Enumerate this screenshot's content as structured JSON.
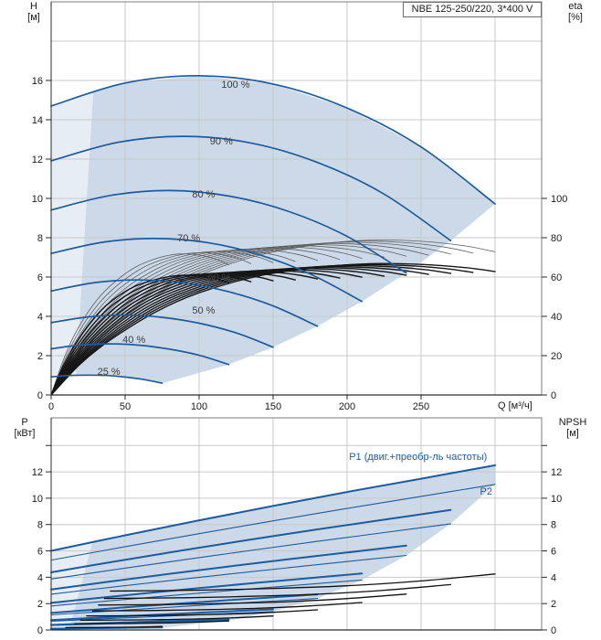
{
  "title_box": {
    "text": "NBE 125-250/220, 3*400 V"
  },
  "colors": {
    "curve_blue": "#1d5c9f",
    "fill_dark": "#ccd9e8",
    "fill_pale": "#e7edf5",
    "grid": "#c9c9c9",
    "frame": "#7d7d7d",
    "axis_dark": "#2a2a2a",
    "eta_light_curve": "#5f5f5f",
    "eta_dark_curve": "#161616",
    "npsh_curve": "#111111",
    "tick_text": "#1a1a1a",
    "speed_label_text": "#3c3c3c"
  },
  "head_chart": {
    "y_label_1": "H",
    "y_label_2": "[м]",
    "y2_label_1": "eta",
    "y2_label_2": "[%]",
    "x_label": "Q [м³/ч]",
    "x_ticks": [
      0,
      50,
      100,
      150,
      200,
      250
    ],
    "y_ticks": [
      0,
      2,
      4,
      6,
      8,
      10,
      12,
      14,
      16
    ],
    "y2_ticks": [
      0,
      20,
      40,
      60,
      80,
      100
    ]
  },
  "power_chart": {
    "y_label_1": "P",
    "y_label_2": "[кВт]",
    "y2_label_1": "NPSH",
    "y2_label_2": "[м]",
    "y_ticks": [
      0,
      2,
      4,
      6,
      8,
      10,
      12
    ],
    "y2_ticks": [
      0,
      2,
      4,
      6,
      8,
      10,
      12
    ]
  },
  "chart_data": [
    {
      "type": "line",
      "id": "head",
      "title": "NBE 125-250/220, 3*400 V",
      "xlabel": "Q [м³/ч]",
      "ylabel": "H [м]",
      "y2label": "eta [%]",
      "xlim": [
        0,
        331
      ],
      "ylim": [
        0,
        20
      ],
      "y2lim": [
        0,
        200
      ],
      "grid": true,
      "series": [
        {
          "name": "100 %",
          "speed": 1.0,
          "points": [
            [
              0,
              14.7
            ],
            [
              50,
              15.87
            ],
            [
              100,
              16.24
            ],
            [
              150,
              15.82
            ],
            [
              200,
              14.6
            ],
            [
              250,
              12.62
            ],
            [
              300,
              9.72
            ]
          ]
        },
        {
          "name": "90 %",
          "speed": 0.9,
          "points": [
            [
              0,
              11.91
            ],
            [
              45,
              12.85
            ],
            [
              90,
              13.16
            ],
            [
              135,
              12.82
            ],
            [
              180,
              11.83
            ],
            [
              225,
              10.22
            ],
            [
              270,
              7.85
            ]
          ]
        },
        {
          "name": "80 %",
          "speed": 0.8,
          "points": [
            [
              0,
              9.41
            ],
            [
              40,
              10.15
            ],
            [
              80,
              10.4
            ],
            [
              120,
              10.12
            ],
            [
              160,
              9.35
            ],
            [
              200,
              8.07
            ],
            [
              240,
              6.21
            ]
          ]
        },
        {
          "name": "70 %",
          "speed": 0.7,
          "points": [
            [
              0,
              7.2
            ],
            [
              35,
              7.77
            ],
            [
              70,
              7.96
            ],
            [
              105,
              7.76
            ],
            [
              140,
              7.15
            ],
            [
              175,
              6.16
            ],
            [
              210,
              4.76
            ]
          ]
        },
        {
          "name": "60 %",
          "speed": 0.6,
          "points": [
            [
              0,
              5.29
            ],
            [
              30,
              5.72
            ],
            [
              60,
              5.85
            ],
            [
              90,
              5.69
            ],
            [
              120,
              5.25
            ],
            [
              150,
              4.53
            ],
            [
              180,
              3.5
            ]
          ]
        },
        {
          "name": "50 %",
          "speed": 0.5,
          "points": [
            [
              0,
              3.68
            ],
            [
              25,
              3.97
            ],
            [
              50,
              4.06
            ],
            [
              75,
              3.95
            ],
            [
              100,
              3.65
            ],
            [
              125,
              3.16
            ],
            [
              150,
              2.43
            ]
          ]
        },
        {
          "name": "40 %",
          "speed": 0.4,
          "points": [
            [
              0,
              2.35
            ],
            [
              20,
              2.54
            ],
            [
              40,
              2.6
            ],
            [
              60,
              2.53
            ],
            [
              80,
              2.33
            ],
            [
              100,
              2.02
            ],
            [
              120,
              1.55
            ]
          ]
        },
        {
          "name": "25 %",
          "speed": 0.25,
          "points": [
            [
              0,
              0.92
            ],
            [
              12,
              0.99
            ],
            [
              25,
              1.01
            ],
            [
              38,
              0.99
            ],
            [
              50,
              0.91
            ],
            [
              63,
              0.78
            ],
            [
              75,
              0.6
            ]
          ]
        }
      ],
      "min_flow_line": [
        [
          16.8,
          1.0
        ],
        [
          28.5,
          15.46
        ]
      ],
      "eta_family": {
        "speeds": [
          1.0,
          0.95,
          0.9,
          0.85,
          0.8,
          0.75,
          0.7,
          0.65,
          0.6,
          0.55,
          0.5,
          0.45,
          0.4
        ],
        "light_base": [
          [
            0,
            0
          ],
          [
            20,
            19
          ],
          [
            40,
            34
          ],
          [
            70,
            50
          ],
          [
            100,
            61
          ],
          [
            140,
            71
          ],
          [
            180,
            76.5
          ],
          [
            215,
            78.8
          ],
          [
            250,
            78.2
          ],
          [
            280,
            75.8
          ],
          [
            300,
            72.8
          ]
        ],
        "dark_base": [
          [
            0,
            0
          ],
          [
            20,
            16
          ],
          [
            40,
            28
          ],
          [
            70,
            42
          ],
          [
            100,
            52
          ],
          [
            140,
            60.5
          ],
          [
            180,
            64.8
          ],
          [
            215,
            66.8
          ],
          [
            250,
            66.4
          ],
          [
            280,
            64.8
          ],
          [
            300,
            62.8
          ]
        ]
      },
      "labels": [
        {
          "text": "100 %",
          "q": 124.7,
          "v": 15.77
        },
        {
          "text": "90 %",
          "q": 115.0,
          "v": 12.88
        },
        {
          "text": "80 %",
          "q": 103.0,
          "v": 10.19
        },
        {
          "text": "70 %",
          "q": 93.0,
          "v": 7.95
        },
        {
          "text": "60 %",
          "q": 113.6,
          "v": 5.95
        },
        {
          "text": "50 %",
          "q": 103.0,
          "v": 4.28
        },
        {
          "text": "40 %",
          "q": 56.0,
          "v": 2.78
        },
        {
          "text": "25 %",
          "q": 39.0,
          "v": 1.18
        }
      ]
    },
    {
      "type": "line",
      "id": "power",
      "xlabel": "Q [м³/ч]",
      "ylabel": "P [кВт]",
      "y2label": "NPSH [м]",
      "xlim": [
        0,
        331
      ],
      "ylim": [
        0,
        16.1
      ],
      "y2lim": [
        0,
        16.1
      ],
      "grid": true,
      "speeds": [
        1.0,
        0.9,
        0.8,
        0.7,
        0.6,
        0.5,
        0.4,
        0.25
      ],
      "p1_base": [
        [
          0,
          6.0
        ],
        [
          50,
          7.18
        ],
        [
          100,
          8.32
        ],
        [
          150,
          9.41
        ],
        [
          200,
          10.47
        ],
        [
          250,
          11.48
        ],
        [
          300,
          12.5
        ]
      ],
      "p2_base": [
        [
          0,
          5.3
        ],
        [
          50,
          6.32
        ],
        [
          100,
          7.31
        ],
        [
          150,
          8.28
        ],
        [
          200,
          9.22
        ],
        [
          250,
          10.14
        ],
        [
          300,
          11.05
        ]
      ],
      "npsh_base": [
        [
          40,
          2.95
        ],
        [
          100,
          3.02
        ],
        [
          150,
          3.15
        ],
        [
          200,
          3.35
        ],
        [
          250,
          3.72
        ],
        [
          300,
          4.25
        ]
      ],
      "min_flow_line": [
        [
          12.3,
          0.02
        ],
        [
          28.0,
          6.67
        ]
      ],
      "labels": [
        {
          "text": "P1 (двиг.+преобр-ль частоты)",
          "q": 248,
          "v": 13.1
        },
        {
          "text": "P2",
          "q": 294,
          "v": 10.5
        }
      ]
    }
  ]
}
